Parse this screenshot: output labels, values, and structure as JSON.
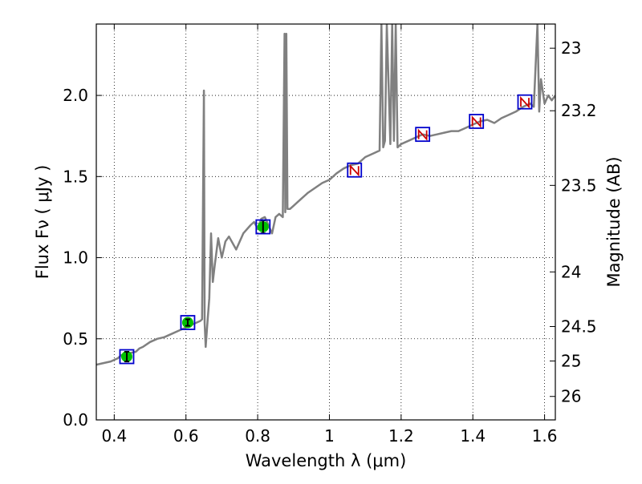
{
  "chart_data": {
    "type": "line",
    "title": "",
    "xlabel": "Wavelength  λ (μm)",
    "ylabel": "Flux  Fν  ( μJy )",
    "ylabel_right": "Magnitude (AB)",
    "xlim": [
      0.35,
      1.63
    ],
    "ylim": [
      0.0,
      2.44
    ],
    "grid": true,
    "legend": "none",
    "x_ticks": [
      {
        "value": 0.4,
        "label": "0.4"
      },
      {
        "value": 0.6,
        "label": "0.6"
      },
      {
        "value": 0.8,
        "label": "0.8"
      },
      {
        "value": 1.0,
        "label": "1"
      },
      {
        "value": 1.2,
        "label": "1.2"
      },
      {
        "value": 1.4,
        "label": "1.4"
      },
      {
        "value": 1.6,
        "label": "1.6"
      }
    ],
    "y_ticks": [
      {
        "value": 0.0,
        "label": "0.0"
      },
      {
        "value": 0.5,
        "label": "0.5"
      },
      {
        "value": 1.0,
        "label": "1.0"
      },
      {
        "value": 1.5,
        "label": "1.5"
      },
      {
        "value": 2.0,
        "label": "2.0"
      }
    ],
    "mag_ticks": [
      {
        "value": 23,
        "label": "23"
      },
      {
        "value": 23.2,
        "label": "23.2"
      },
      {
        "value": 23.5,
        "label": "23.5"
      },
      {
        "value": 24,
        "label": "24"
      },
      {
        "value": 24.5,
        "label": "24.5"
      },
      {
        "value": 25,
        "label": "25"
      },
      {
        "value": 26,
        "label": "26"
      }
    ],
    "series": [
      {
        "type": "line",
        "color": "#808080",
        "x": [
          0.35,
          0.37,
          0.39,
          0.41,
          0.42,
          0.43,
          0.44,
          0.46,
          0.47,
          0.48,
          0.5,
          0.52,
          0.54,
          0.56,
          0.58,
          0.6,
          0.62,
          0.64,
          0.645,
          0.65,
          0.652,
          0.655,
          0.66,
          0.665,
          0.67,
          0.675,
          0.68,
          0.69,
          0.7,
          0.71,
          0.72,
          0.74,
          0.76,
          0.78,
          0.79,
          0.8,
          0.81,
          0.82,
          0.83,
          0.84,
          0.85,
          0.86,
          0.87,
          0.875,
          0.877,
          0.88,
          0.883,
          0.89,
          0.9,
          0.91,
          0.92,
          0.94,
          0.96,
          0.98,
          1.0,
          1.02,
          1.04,
          1.06,
          1.08,
          1.1,
          1.12,
          1.14,
          1.145,
          1.15,
          1.155,
          1.16,
          1.17,
          1.175,
          1.18,
          1.185,
          1.19,
          1.2,
          1.22,
          1.24,
          1.26,
          1.28,
          1.3,
          1.32,
          1.34,
          1.36,
          1.38,
          1.4,
          1.42,
          1.44,
          1.46,
          1.48,
          1.5,
          1.52,
          1.54,
          1.56,
          1.57,
          1.58,
          1.585,
          1.59,
          1.6,
          1.61,
          1.62,
          1.63
        ],
        "y": [
          0.34,
          0.35,
          0.36,
          0.38,
          0.4,
          0.39,
          0.41,
          0.42,
          0.44,
          0.45,
          0.48,
          0.5,
          0.51,
          0.53,
          0.55,
          0.57,
          0.59,
          0.61,
          0.62,
          2.03,
          0.6,
          0.45,
          0.6,
          0.75,
          1.15,
          0.85,
          0.95,
          1.12,
          1.0,
          1.1,
          1.13,
          1.05,
          1.15,
          1.2,
          1.22,
          1.18,
          1.24,
          1.25,
          1.2,
          1.15,
          1.25,
          1.27,
          1.25,
          2.38,
          1.28,
          2.38,
          1.3,
          1.3,
          1.32,
          1.34,
          1.36,
          1.4,
          1.43,
          1.46,
          1.48,
          1.52,
          1.55,
          1.57,
          1.58,
          1.62,
          1.64,
          1.66,
          2.44,
          1.68,
          1.72,
          2.44,
          1.7,
          2.44,
          1.72,
          2.44,
          1.68,
          1.7,
          1.72,
          1.74,
          1.76,
          1.75,
          1.76,
          1.77,
          1.78,
          1.78,
          1.8,
          1.82,
          1.84,
          1.85,
          1.83,
          1.86,
          1.88,
          1.9,
          1.93,
          1.95,
          1.93,
          2.44,
          1.9,
          2.1,
          1.95,
          2.0,
          1.97,
          2.0
        ]
      },
      {
        "type": "points",
        "name": "",
        "x": [
          0.435,
          0.605,
          0.815
        ],
        "y": [
          0.39,
          0.6,
          1.19
        ],
        "yerr": [
          0.03,
          0.02,
          0.04
        ],
        "color": "#00c000"
      },
      {
        "type": "model_boxes",
        "x": [
          0.435,
          0.605,
          0.815,
          1.07,
          1.26,
          1.41,
          1.545
        ],
        "y": [
          0.39,
          0.6,
          1.19,
          1.54,
          1.76,
          1.84,
          1.96
        ],
        "color": "#0000cc"
      },
      {
        "type": "upper_limits",
        "x": [
          1.07,
          1.26,
          1.41,
          1.545
        ],
        "y": [
          1.54,
          1.76,
          1.84,
          1.96
        ],
        "color": "#cc0000"
      }
    ],
    "colors": {
      "spectrum": "#808080",
      "box": "#0000cc",
      "detection": "#00c000",
      "limit": "#cc0000"
    }
  }
}
